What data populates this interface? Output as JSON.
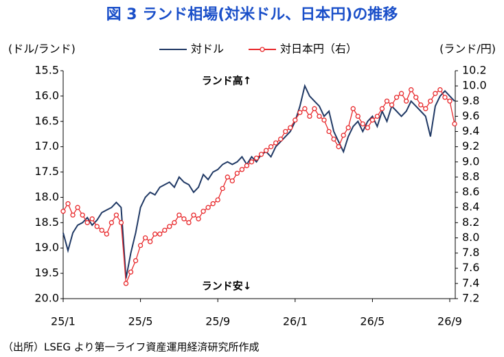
{
  "chart_data": {
    "type": "line",
    "title": "図 3 ランド相場(対米ドル、日本円)の推移",
    "y_label": "(ドル/ランド)",
    "y2_label": "(ランド/円)",
    "annotations": [
      "ランド高↑",
      "ランド安↓"
    ],
    "source": "（出所）LSEG より第一ライフ資産運用経済研究所作成",
    "categories": [
      "25/1",
      null,
      null,
      null,
      null,
      null,
      null,
      null,
      null,
      null,
      null,
      null,
      null,
      null,
      null,
      null,
      "25/5",
      null,
      null,
      null,
      null,
      null,
      null,
      null,
      null,
      null,
      null,
      null,
      null,
      null,
      null,
      null,
      "25/9",
      null,
      null,
      null,
      null,
      null,
      null,
      null,
      null,
      null,
      null,
      null,
      null,
      null,
      null,
      null,
      "26/1",
      null,
      null,
      null,
      null,
      null,
      null,
      null,
      null,
      null,
      null,
      null,
      null,
      null,
      null,
      null,
      "26/5",
      null,
      null,
      null,
      null,
      null,
      null,
      null,
      null,
      null,
      null,
      null,
      null,
      null,
      null,
      null,
      "26/9",
      null
    ],
    "series": [
      {
        "name": "対ドル",
        "color": "#1f3864",
        "values": [
          18.7,
          19.05,
          18.7,
          18.55,
          18.5,
          18.4,
          18.55,
          18.45,
          18.3,
          18.25,
          18.2,
          18.1,
          18.2,
          19.6,
          19.1,
          18.7,
          18.2,
          18.0,
          17.9,
          17.95,
          17.8,
          17.75,
          17.7,
          17.8,
          17.6,
          17.7,
          17.75,
          17.9,
          17.8,
          17.55,
          17.65,
          17.5,
          17.45,
          17.35,
          17.3,
          17.35,
          17.3,
          17.2,
          17.35,
          17.2,
          17.3,
          17.15,
          17.1,
          17.2,
          17.0,
          16.9,
          16.8,
          16.7,
          16.5,
          16.2,
          15.8,
          16.0,
          16.1,
          16.2,
          16.4,
          16.3,
          16.7,
          16.9,
          17.1,
          16.8,
          16.6,
          16.5,
          16.7,
          16.5,
          16.4,
          16.6,
          16.3,
          16.5,
          16.2,
          16.3,
          16.4,
          16.3,
          16.1,
          16.2,
          16.3,
          16.4,
          16.8,
          16.2,
          16.0,
          15.9,
          16.0,
          16.1
        ]
      },
      {
        "name": "対日本円（右）",
        "color": "#e8282b",
        "axis": "y2",
        "marker": "circle",
        "values": [
          8.35,
          8.45,
          8.3,
          8.4,
          8.3,
          8.2,
          8.25,
          8.15,
          8.1,
          8.05,
          8.2,
          8.3,
          8.2,
          7.4,
          7.55,
          7.7,
          7.9,
          8.0,
          7.95,
          8.05,
          8.05,
          8.1,
          8.15,
          8.2,
          8.3,
          8.25,
          8.2,
          8.3,
          8.25,
          8.35,
          8.4,
          8.45,
          8.5,
          8.65,
          8.8,
          8.75,
          8.85,
          8.9,
          8.95,
          9.0,
          9.05,
          9.1,
          9.15,
          9.2,
          9.25,
          9.3,
          9.4,
          9.45,
          9.55,
          9.65,
          9.7,
          9.6,
          9.7,
          9.6,
          9.55,
          9.4,
          9.3,
          9.2,
          9.35,
          9.45,
          9.7,
          9.6,
          9.5,
          9.45,
          9.55,
          9.6,
          9.7,
          9.8,
          9.75,
          9.85,
          9.9,
          9.8,
          9.95,
          9.85,
          9.75,
          9.7,
          9.8,
          9.9,
          9.95,
          9.85,
          9.8,
          9.5
        ]
      }
    ],
    "ylim": [
      15.5,
      20
    ],
    "y_reversed": true,
    "yticks": [
      15.5,
      {
        "value": 16,
        "label": "16.0"
      },
      16.5,
      {
        "value": 17,
        "label": "17.0"
      },
      17.5,
      {
        "value": 18,
        "label": "18.0"
      },
      18.5,
      {
        "value": 19,
        "label": "19.0"
      },
      19.5,
      {
        "value": 20,
        "label": "20.0"
      }
    ],
    "y2lim": [
      7.2,
      10.2
    ],
    "y2ticks": [
      7.2,
      7.4,
      7.6,
      7.8,
      {
        "value": 8,
        "label": "8.0"
      },
      8.2,
      8.4,
      8.6,
      8.8,
      {
        "value": 9,
        "label": "9.0"
      },
      9.2,
      9.4,
      9.6,
      9.8,
      {
        "value": 10,
        "label": "10.0"
      },
      10.2
    ],
    "grid": false,
    "legend": "top"
  }
}
